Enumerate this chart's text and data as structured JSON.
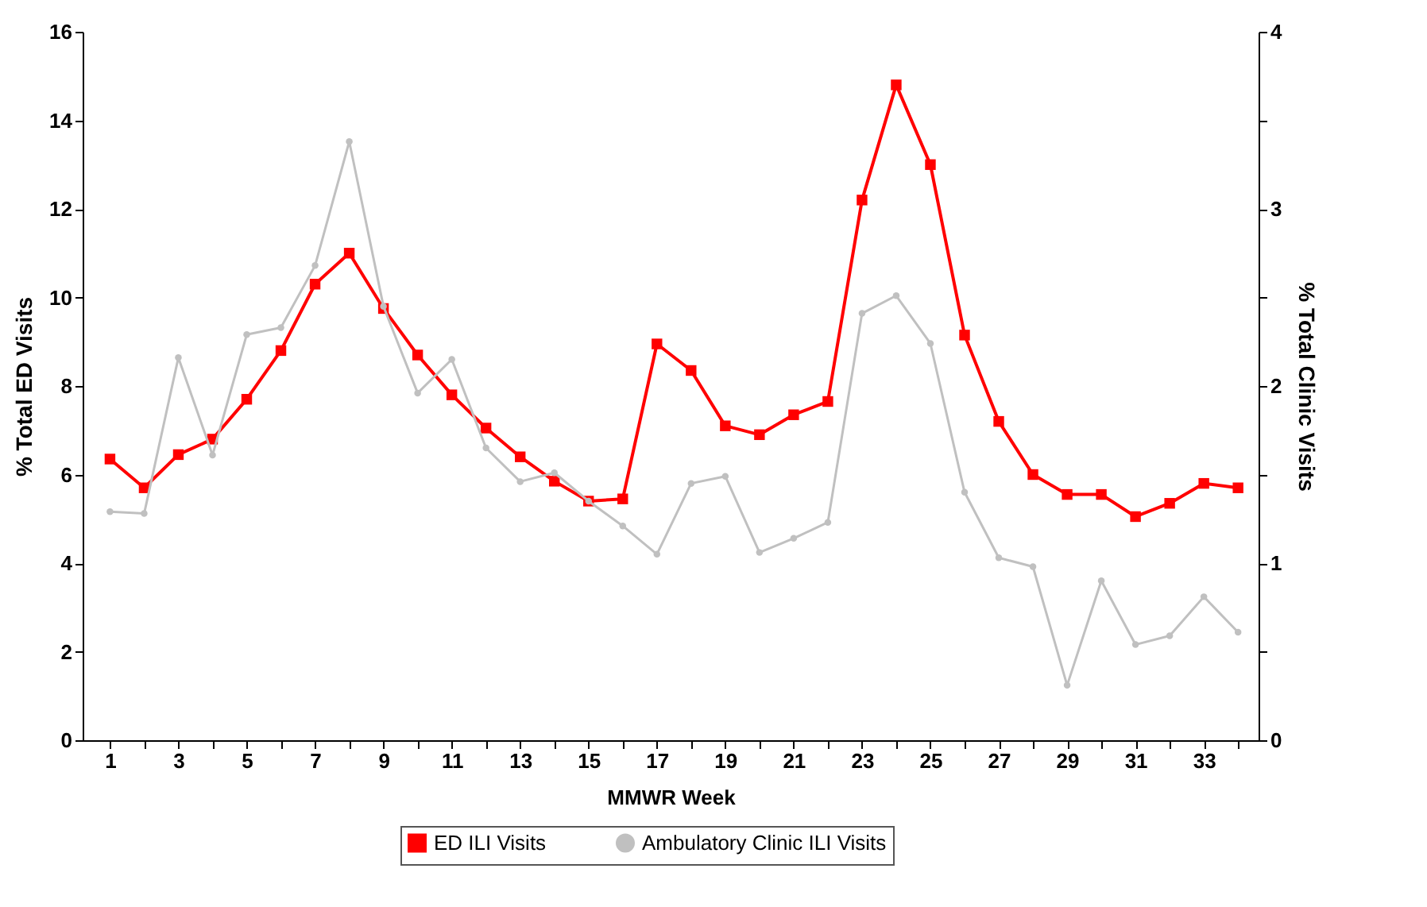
{
  "chart_data": {
    "type": "line",
    "xlabel": "MMWR Week",
    "ylabel": "% Total ED Visits",
    "y2label": "% Total Clinic Visits",
    "x": [
      1,
      2,
      3,
      4,
      5,
      6,
      7,
      8,
      9,
      10,
      11,
      12,
      13,
      14,
      15,
      16,
      17,
      18,
      19,
      20,
      21,
      22,
      23,
      24,
      25,
      26,
      27,
      28,
      29,
      30,
      31,
      32,
      33,
      34
    ],
    "xlim": [
      0.2,
      34.6
    ],
    "xticks": [
      1,
      {
        "value": 2,
        "label": null
      },
      3,
      {
        "value": 4,
        "label": null
      },
      5,
      {
        "value": 6,
        "label": null
      },
      7,
      {
        "value": 8,
        "label": null
      },
      9,
      {
        "value": 10,
        "label": null
      },
      11,
      {
        "value": 12,
        "label": null
      },
      13,
      {
        "value": 14,
        "label": null
      },
      15,
      {
        "value": 16,
        "label": null
      },
      17,
      {
        "value": 18,
        "label": null
      },
      19,
      {
        "value": 20,
        "label": null
      },
      21,
      {
        "value": 22,
        "label": null
      },
      23,
      {
        "value": 24,
        "label": null
      },
      25,
      {
        "value": 26,
        "label": null
      },
      27,
      {
        "value": 28,
        "label": null
      },
      29,
      {
        "value": 30,
        "label": null
      },
      31,
      {
        "value": 32,
        "label": null
      },
      33,
      {
        "value": 34,
        "label": null
      }
    ],
    "ylim": [
      0,
      16
    ],
    "yticks": [
      0,
      2,
      4,
      6,
      8,
      10,
      12,
      14,
      16
    ],
    "y2lim": [
      0,
      4
    ],
    "y2ticks": [
      0,
      {
        "value": 0.5,
        "label": null
      },
      1,
      {
        "value": 1.5,
        "label": null
      },
      2,
      {
        "value": 2.5,
        "label": null
      },
      3,
      {
        "value": 3.5,
        "label": null
      },
      4
    ],
    "grid": false,
    "legend": "bottom",
    "line_style": "solid",
    "series": [
      {
        "name": "ED ILI Visits",
        "color": "#ff0000",
        "marker": "square",
        "values": [
          6.35,
          5.7,
          6.45,
          6.8,
          7.7,
          8.8,
          10.3,
          11.0,
          9.75,
          8.7,
          7.8,
          7.05,
          6.4,
          5.85,
          5.4,
          5.45,
          8.95,
          8.35,
          7.1,
          6.9,
          7.35,
          7.65,
          12.2,
          14.8,
          13.0,
          9.15,
          7.2,
          6.0,
          5.55,
          5.55,
          5.05,
          5.35,
          5.8,
          5.7
        ]
      },
      {
        "name": "Ambulatory Clinic ILI Visits",
        "color": "#c0c0c0",
        "marker": "circle",
        "axis": "y2",
        "values": [
          1.29,
          1.28,
          2.16,
          1.61,
          2.29,
          2.33,
          2.68,
          3.38,
          2.45,
          1.96,
          2.15,
          1.65,
          1.46,
          1.51,
          1.35,
          1.21,
          1.05,
          1.45,
          1.49,
          1.06,
          1.14,
          1.23,
          2.41,
          2.51,
          2.24,
          1.4,
          1.03,
          0.98,
          0.31,
          0.9,
          0.54,
          0.59,
          0.81,
          0.61
        ]
      }
    ]
  }
}
